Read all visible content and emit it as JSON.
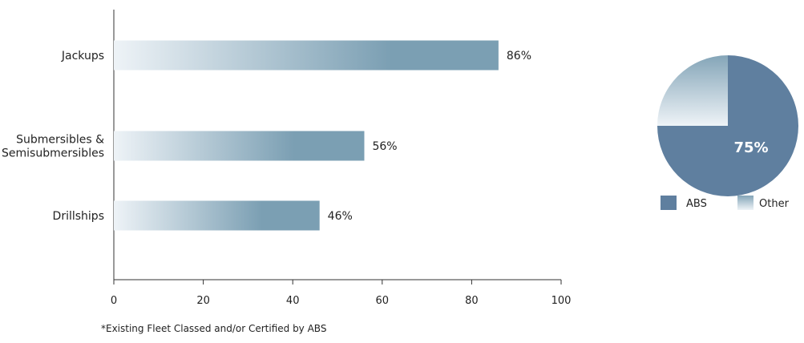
{
  "footnote": "*Existing Fleet Classed and/or Certified by ABS",
  "colors": {
    "bar_light": "#eef3f7",
    "bar_dark": "#7b9fb3",
    "abs": "#5f7f9f",
    "other_top": "#84a5b8",
    "other_bottom": "#eef3f7",
    "axis": "#333333"
  },
  "chart_data": [
    {
      "type": "bar",
      "orientation": "horizontal",
      "categories": [
        [
          "Jackups"
        ],
        [
          "Submersibles &",
          "Semisubmersibles"
        ],
        [
          "Drillships"
        ]
      ],
      "values": [
        86,
        56,
        46
      ],
      "data_labels": [
        "86%",
        "56%",
        "46%"
      ],
      "xlim": [
        0,
        100
      ],
      "xticks": [
        0,
        20,
        40,
        60,
        80,
        100
      ],
      "xtick_labels": [
        "0",
        "20",
        "40",
        "60",
        "80",
        "100"
      ],
      "title": "",
      "xlabel": "",
      "ylabel": "",
      "grid": false
    },
    {
      "type": "pie",
      "slices": [
        {
          "name": "ABS",
          "value": 75,
          "color": "#5f7f9f"
        },
        {
          "name": "Other",
          "value": 25,
          "color": "#84a5b8"
        }
      ],
      "slice_label": "75%",
      "legend": [
        "ABS",
        "Other"
      ],
      "legend_placement": "bottom"
    }
  ]
}
